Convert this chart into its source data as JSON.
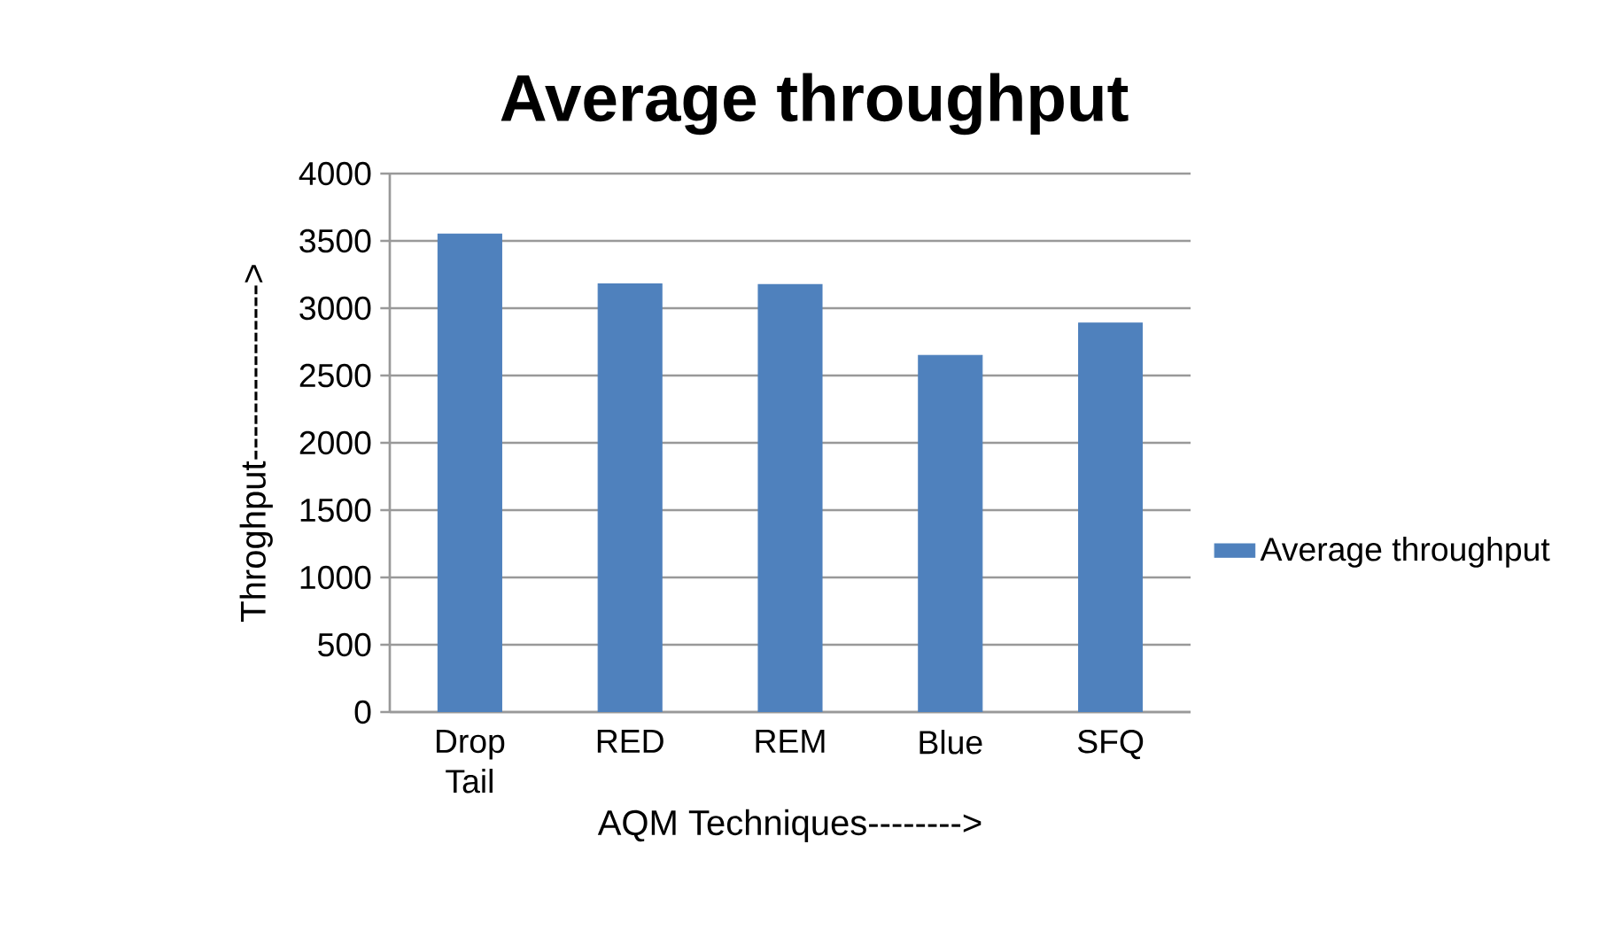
{
  "chart_data": {
    "type": "bar",
    "title": "Average throughput",
    "xlabel": "AQM Techniques-------->",
    "ylabel": "Throghput--------------->",
    "categories": [
      "Drop Tail",
      "RED",
      "REM",
      "Blue",
      "SFQ"
    ],
    "series": [
      {
        "name": "Average throughput",
        "color": "#4f81bd",
        "values": [
          3550,
          3180,
          3175,
          2650,
          2890
        ]
      }
    ],
    "ylim": [
      0,
      4000
    ],
    "yticks": [
      0,
      500,
      1000,
      1500,
      2000,
      2500,
      3000,
      3500,
      4000
    ],
    "grid": "y",
    "legend": "right"
  }
}
